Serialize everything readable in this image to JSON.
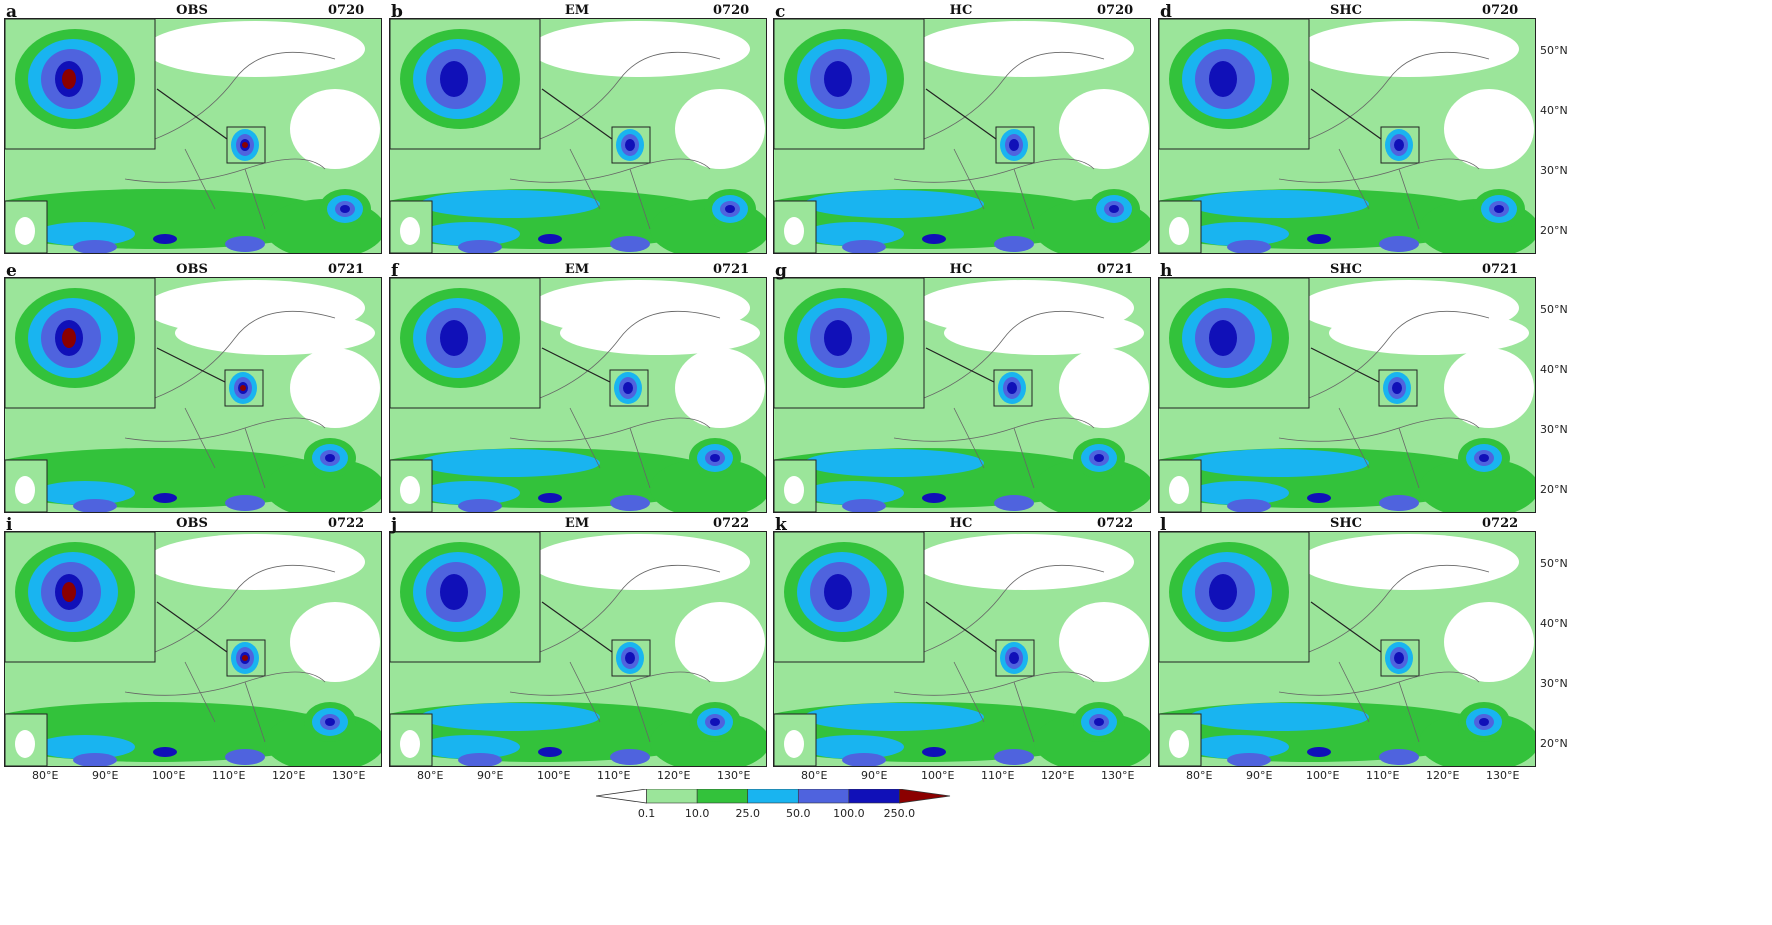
{
  "panels": [
    {
      "letter": "a",
      "title": "OBS",
      "date": "0720"
    },
    {
      "letter": "b",
      "title": "EM",
      "date": "0720"
    },
    {
      "letter": "c",
      "title": "HC",
      "date": "0720"
    },
    {
      "letter": "d",
      "title": "SHC",
      "date": "0720"
    },
    {
      "letter": "e",
      "title": "OBS",
      "date": "0721"
    },
    {
      "letter": "f",
      "title": "EM",
      "date": "0721"
    },
    {
      "letter": "g",
      "title": "HC",
      "date": "0721"
    },
    {
      "letter": "h",
      "title": "SHC",
      "date": "0721"
    },
    {
      "letter": "i",
      "title": "OBS",
      "date": "0722"
    },
    {
      "letter": "j",
      "title": "EM",
      "date": "0722"
    },
    {
      "letter": "k",
      "title": "HC",
      "date": "0722"
    },
    {
      "letter": "l",
      "title": "SHC",
      "date": "0722"
    }
  ],
  "lon_ticks": [
    "80°E",
    "90°E",
    "100°E",
    "110°E",
    "120°E",
    "130°E"
  ],
  "lat_ticks": [
    "50°N",
    "40°N",
    "30°N",
    "20°N"
  ],
  "colorbar": {
    "labels": [
      "0.1",
      "10.0",
      "25.0",
      "50.0",
      "100.0",
      "250.0"
    ],
    "colors": [
      "#ffffff",
      "#9be59a",
      "#33c23b",
      "#19b4f0",
      "#4f63de",
      "#1010b8",
      "#8b0000"
    ]
  }
}
